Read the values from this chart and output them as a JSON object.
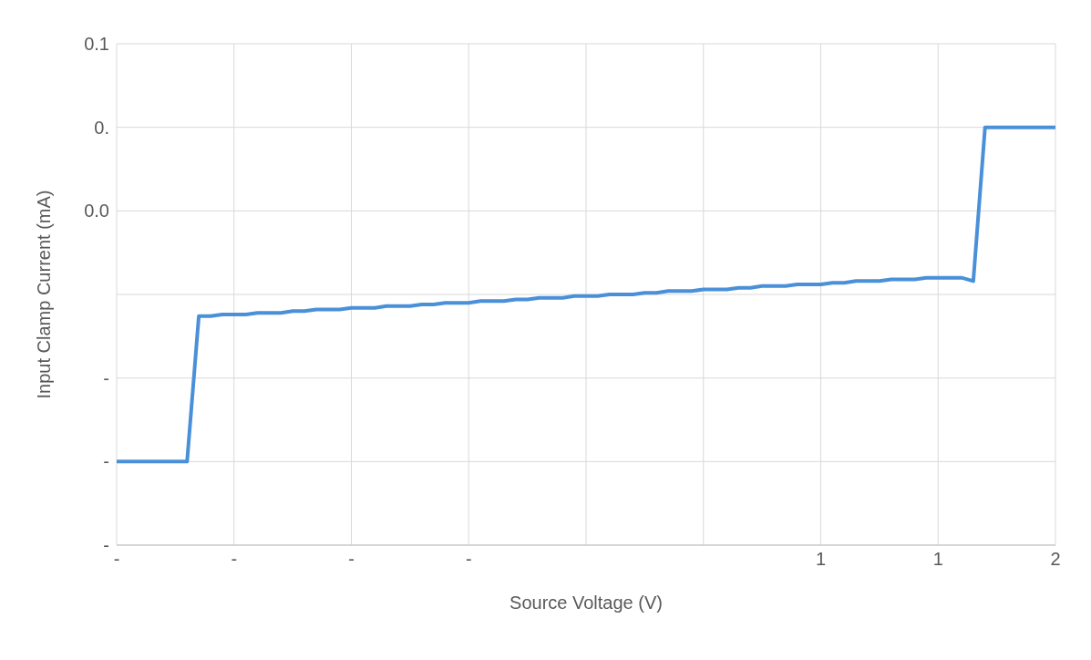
{
  "chart_data": {
    "type": "line",
    "xlabel": "Source Voltage (V)",
    "ylabel": "Input Clamp Current (mA)",
    "categories": [
      "-",
      null,
      null,
      null,
      null,
      null,
      null,
      null,
      null,
      null,
      "-",
      null,
      null,
      null,
      null,
      null,
      null,
      null,
      null,
      null,
      "-",
      null,
      null,
      null,
      null,
      null,
      null,
      null,
      null,
      null,
      "-",
      null,
      null,
      null,
      null,
      null,
      null,
      null,
      null,
      null,
      null,
      null,
      null,
      null,
      null,
      null,
      null,
      null,
      null,
      null,
      null,
      null,
      null,
      null,
      null,
      null,
      null,
      null,
      null,
      null,
      "1",
      null,
      null,
      null,
      null,
      null,
      null,
      null,
      null,
      null,
      "1",
      null,
      null,
      null,
      null,
      null,
      null,
      null,
      null,
      null,
      "2"
    ],
    "series": [
      {
        "color": "#4a90d9",
        "values": [
          -0.15,
          -0.15,
          -0.15,
          -0.15,
          -0.15,
          -0.15,
          -0.15,
          -0.063,
          -0.063,
          -0.062,
          -0.062,
          -0.062,
          -0.061,
          -0.061,
          -0.061,
          -0.06,
          -0.06,
          -0.059,
          -0.059,
          -0.059,
          -0.058,
          -0.058,
          -0.058,
          -0.057,
          -0.057,
          -0.057,
          -0.056,
          -0.056,
          -0.055,
          -0.055,
          -0.055,
          -0.054,
          -0.054,
          -0.054,
          -0.053,
          -0.053,
          -0.052,
          -0.052,
          -0.052,
          -0.051,
          -0.051,
          -0.051,
          -0.05,
          -0.05,
          -0.05,
          -0.049,
          -0.049,
          -0.048,
          -0.048,
          -0.048,
          -0.047,
          -0.047,
          -0.047,
          -0.046,
          -0.046,
          -0.045,
          -0.045,
          -0.045,
          -0.044,
          -0.044,
          -0.044,
          -0.043,
          -0.043,
          -0.042,
          -0.042,
          -0.042,
          -0.041,
          -0.041,
          -0.041,
          -0.04,
          -0.04,
          -0.04,
          -0.04,
          -0.042,
          0.05,
          0.05,
          0.05,
          0.05,
          0.05,
          0.05,
          0.05
        ]
      }
    ],
    "ylim": [
      -0.2,
      0.1
    ],
    "yticks": [
      {
        "value": 0.1,
        "label": "0.1"
      },
      {
        "value": 0.05,
        "label": "0."
      },
      {
        "value": 0,
        "label": "0.0"
      },
      {
        "value": -0.05,
        "label": null
      },
      {
        "value": -0.1,
        "label": "-"
      },
      {
        "value": -0.15,
        "label": "-"
      },
      {
        "value": -0.2,
        "label": "-"
      }
    ],
    "grid": true,
    "marker": "none",
    "line_style": "solid"
  }
}
